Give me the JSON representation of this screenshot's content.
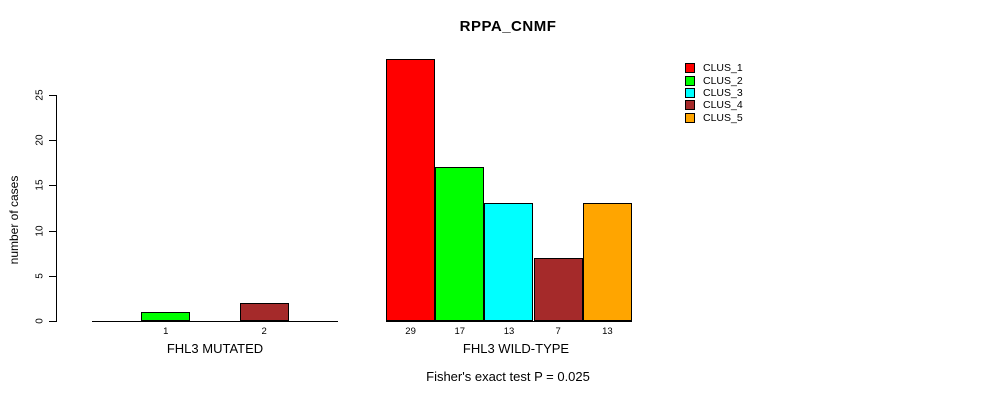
{
  "title": "RPPA_CNMF",
  "footer": "Fisher's exact test P = 0.025",
  "y_axis": {
    "label": "number of cases",
    "ticks": [
      0,
      5,
      10,
      15,
      20,
      25
    ]
  },
  "legend": {
    "position": "top-right",
    "entries": [
      {
        "label": "CLUS_1",
        "color": "#FF0000"
      },
      {
        "label": "CLUS_2",
        "color": "#00FF00"
      },
      {
        "label": "CLUS_3",
        "color": "#00FFFF"
      },
      {
        "label": "CLUS_4",
        "color": "#A52A2A"
      },
      {
        "label": "CLUS_5",
        "color": "#FFA500"
      }
    ]
  },
  "chart_data": {
    "type": "bar",
    "title": "RPPA_CNMF",
    "categories": [
      "FHL3 MUTATED",
      "FHL3 WILD-TYPE"
    ],
    "series": [
      {
        "name": "CLUS_1",
        "color": "#FF0000",
        "values": [
          0,
          29
        ]
      },
      {
        "name": "CLUS_2",
        "color": "#00FF00",
        "values": [
          1,
          17
        ]
      },
      {
        "name": "CLUS_3",
        "color": "#00FFFF",
        "values": [
          0,
          13
        ]
      },
      {
        "name": "CLUS_4",
        "color": "#A52A2A",
        "values": [
          2,
          7
        ]
      },
      {
        "name": "CLUS_5",
        "color": "#FFA500",
        "values": [
          0,
          13
        ]
      }
    ],
    "bar_value_labels_shown": [
      [
        "1",
        "2"
      ],
      [
        "29",
        "17",
        "13",
        "7",
        "13"
      ]
    ],
    "xlabel": "",
    "ylabel": "number of cases",
    "ylim": [
      0,
      29
    ],
    "yticks": [
      0,
      5,
      10,
      15,
      20,
      25
    ],
    "grid": false,
    "legend_position": "top-right",
    "annotation": "Fisher's exact test P = 0.025"
  }
}
